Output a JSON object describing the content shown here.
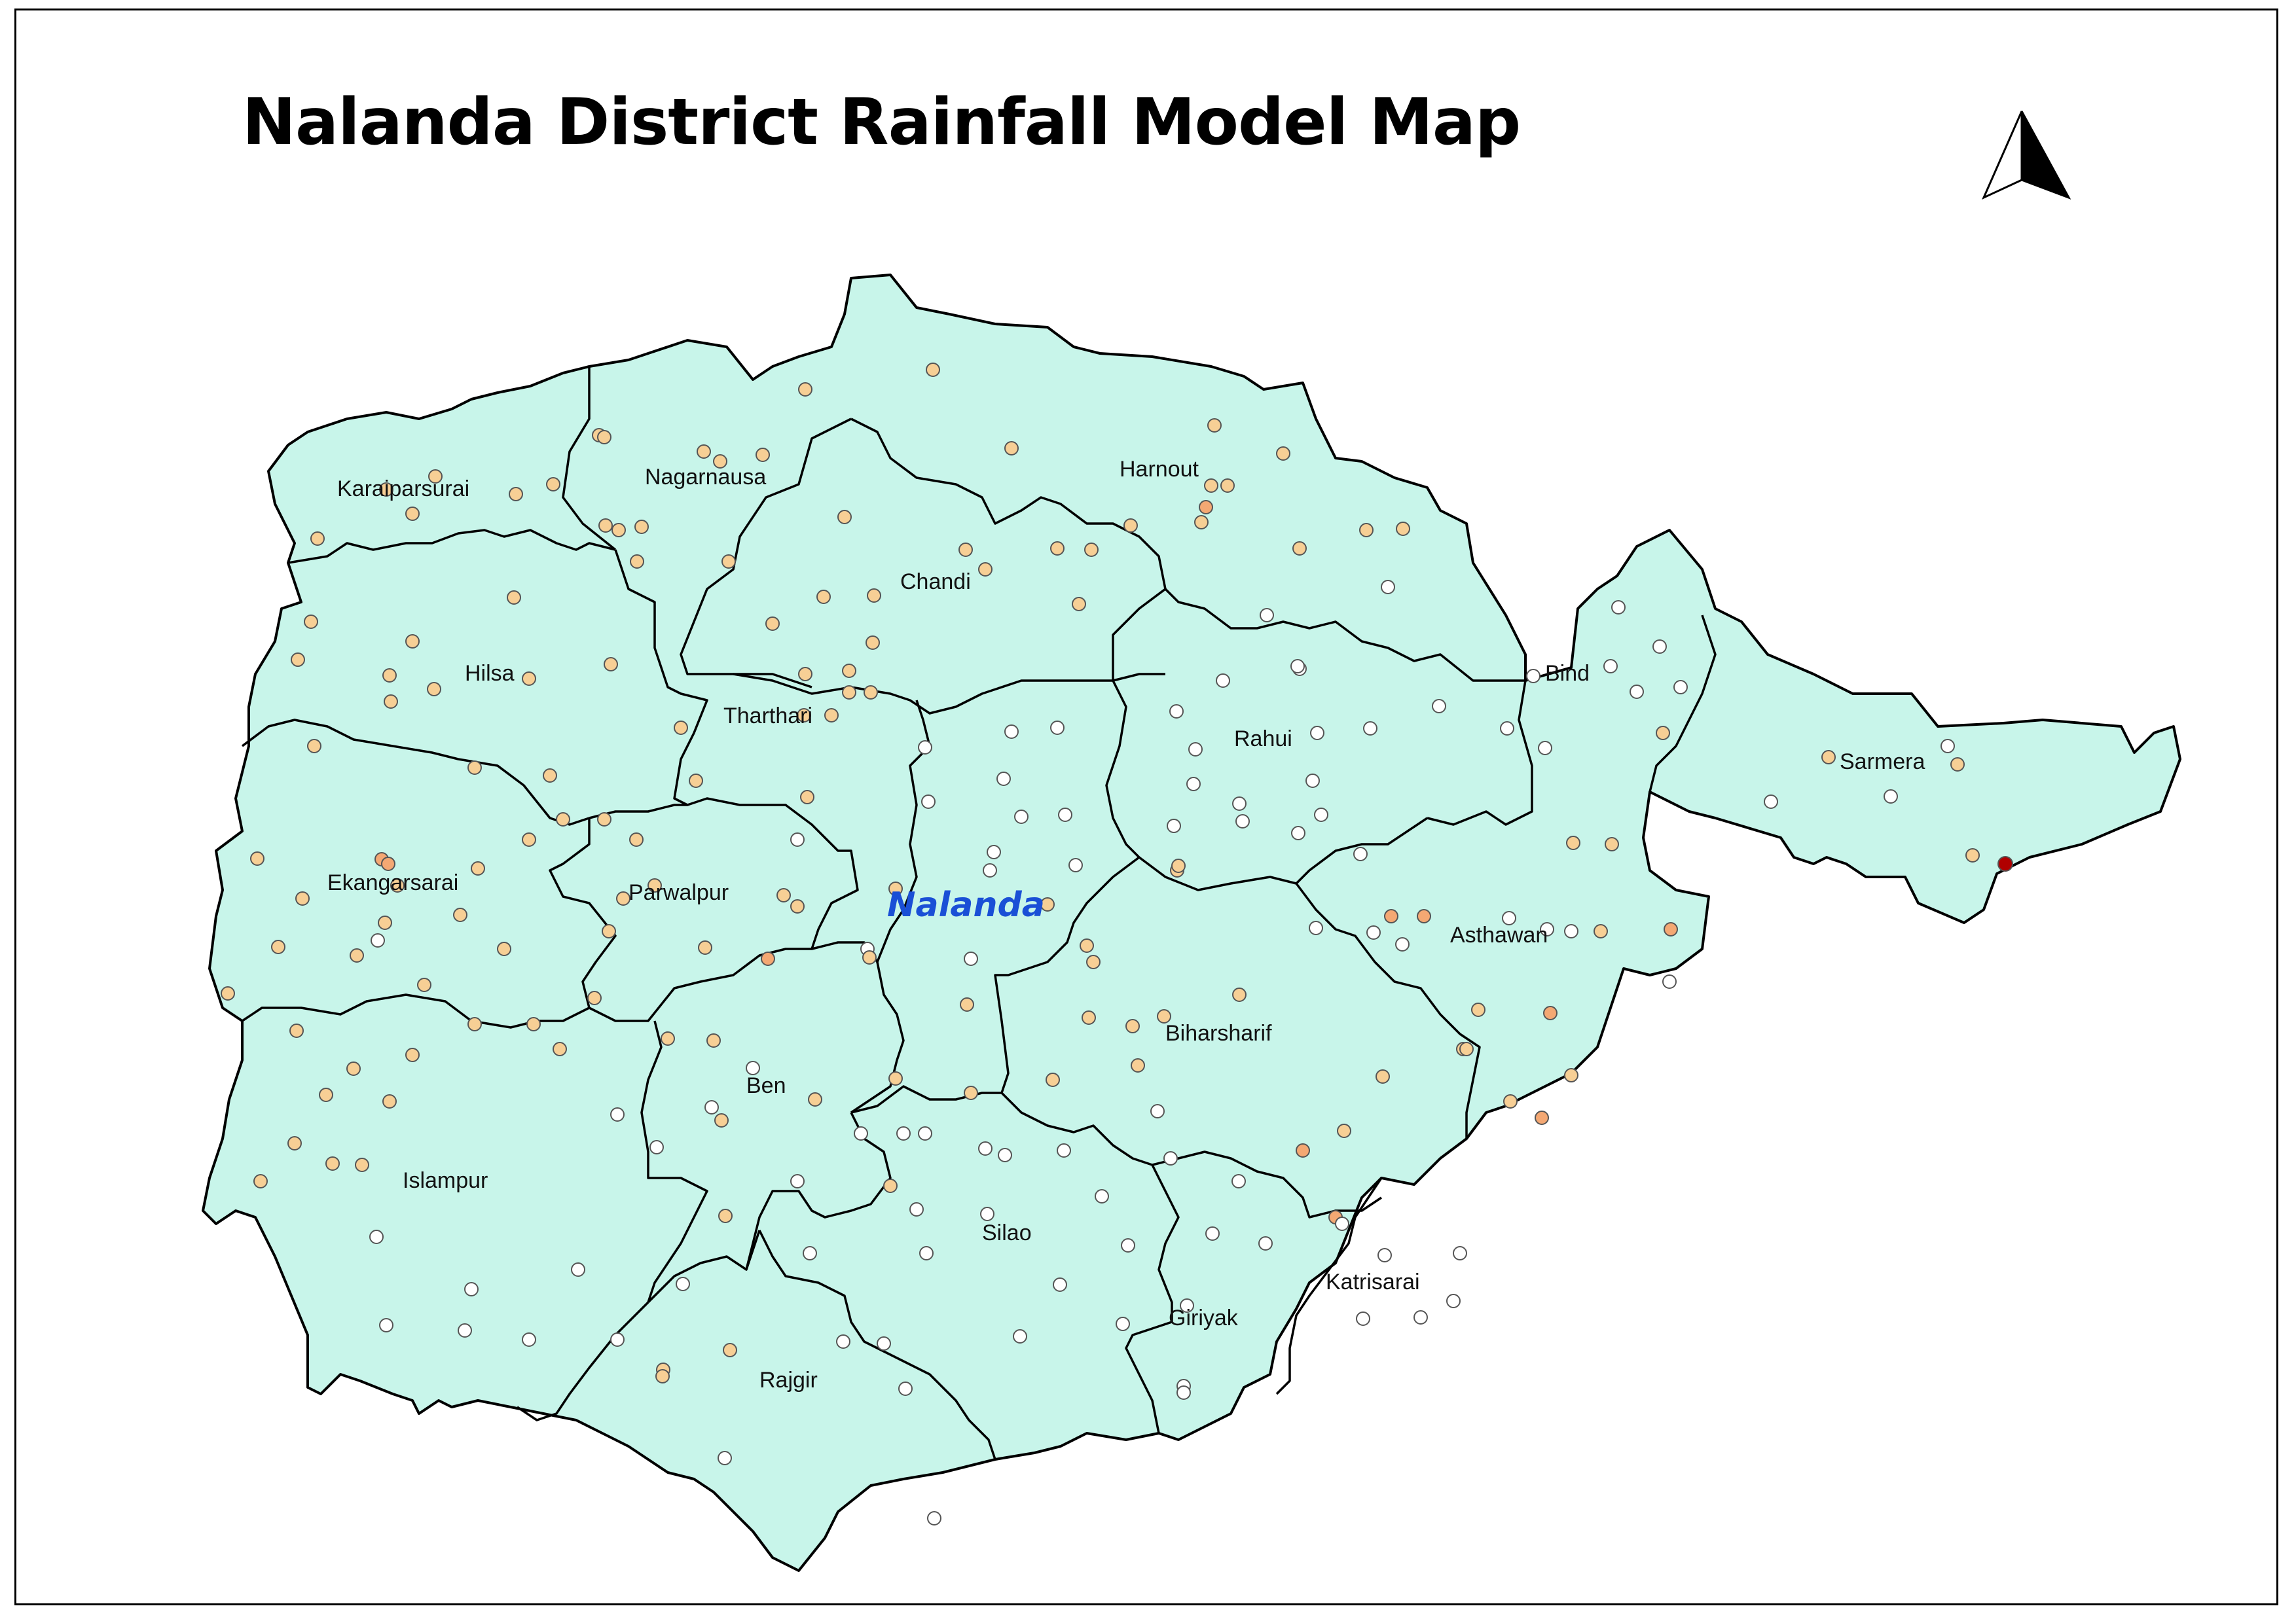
{
  "title": "Nalanda District Rainfall Model Map",
  "district_name": "Nalanda",
  "north_arrow": {
    "icon": "north-arrow-icon"
  },
  "colors": {
    "land_fill": "#c8f5ea",
    "boundary": "#000000",
    "district_label": "#1a4fd6",
    "point_white": "#ffffff",
    "point_light": "#f7cf95",
    "point_medium": "#f4a873",
    "point_high": "#ee7a4f",
    "point_very_high": "#b00000"
  },
  "blocks": [
    "Karaiparsurai",
    "Nagarnausa",
    "Harnout",
    "Chandi",
    "Hilsa",
    "Tharthari",
    "Rahui",
    "Bind",
    "Sarmera",
    "Ekangarsarai",
    "Parwalpur",
    "Asthawan",
    "Biharsharif",
    "Ben",
    "Islampur",
    "Silao",
    "Giriyak",
    "Katrisarai",
    "Rajgir"
  ],
  "rain_point_classes": [
    "white",
    "light",
    "medium",
    "high",
    "very_high"
  ]
}
